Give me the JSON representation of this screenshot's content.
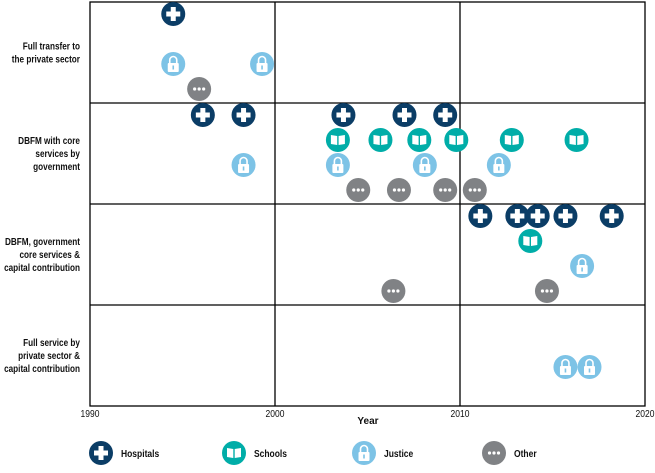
{
  "chart_data": {
    "type": "scatter",
    "title": "",
    "xlabel": "Year",
    "ylabel": "",
    "xlim": [
      1990,
      2020
    ],
    "x_ticks": [
      "1990",
      "2000",
      "2010",
      "2020"
    ],
    "grid": true,
    "legend_position": "bottom",
    "categories": [
      [
        "Full transfer to",
        "the private sector"
      ],
      [
        "DBFM with core",
        "services by",
        "government"
      ],
      [
        "DBFM, government",
        "core services &",
        "capital contribution"
      ],
      [
        "Full service by",
        "private sector &",
        "capital contribution"
      ]
    ],
    "series": [
      {
        "name": "Hospitals",
        "icon": "plus-icon",
        "color": "#0b3d66",
        "points": [
          [
            0,
            1994.5
          ],
          [
            1,
            1996.1
          ],
          [
            1,
            1998.3
          ],
          [
            1,
            2003.7
          ],
          [
            1,
            2007.0
          ],
          [
            1,
            2009.2
          ],
          [
            2,
            2011.1
          ],
          [
            2,
            2013.1
          ],
          [
            2,
            2014.2
          ],
          [
            2,
            2015.7
          ],
          [
            2,
            2018.2
          ]
        ]
      },
      {
        "name": "Schools",
        "icon": "book-icon",
        "color": "#00ada8",
        "points": [
          [
            1,
            2003.4
          ],
          [
            1,
            2005.7
          ],
          [
            1,
            2007.8
          ],
          [
            1,
            2009.8
          ],
          [
            1,
            2012.8
          ],
          [
            1,
            2016.3
          ],
          [
            2,
            2013.8
          ]
        ]
      },
      {
        "name": "Justice",
        "icon": "lock-icon",
        "color": "#7dc3e6",
        "points": [
          [
            0,
            1994.5
          ],
          [
            0,
            1999.3
          ],
          [
            1,
            1998.3
          ],
          [
            1,
            2003.4
          ],
          [
            1,
            2008.1
          ],
          [
            1,
            2012.1
          ],
          [
            2,
            2016.6
          ],
          [
            3,
            2015.7
          ],
          [
            3,
            2017.0
          ]
        ]
      },
      {
        "name": "Other",
        "icon": "dots-icon",
        "color": "#808285",
        "points": [
          [
            0,
            1995.9
          ],
          [
            1,
            2004.5
          ],
          [
            1,
            2006.7
          ],
          [
            1,
            2009.2
          ],
          [
            1,
            2010.8
          ],
          [
            2,
            2006.4
          ],
          [
            2,
            2014.7
          ]
        ]
      }
    ]
  }
}
